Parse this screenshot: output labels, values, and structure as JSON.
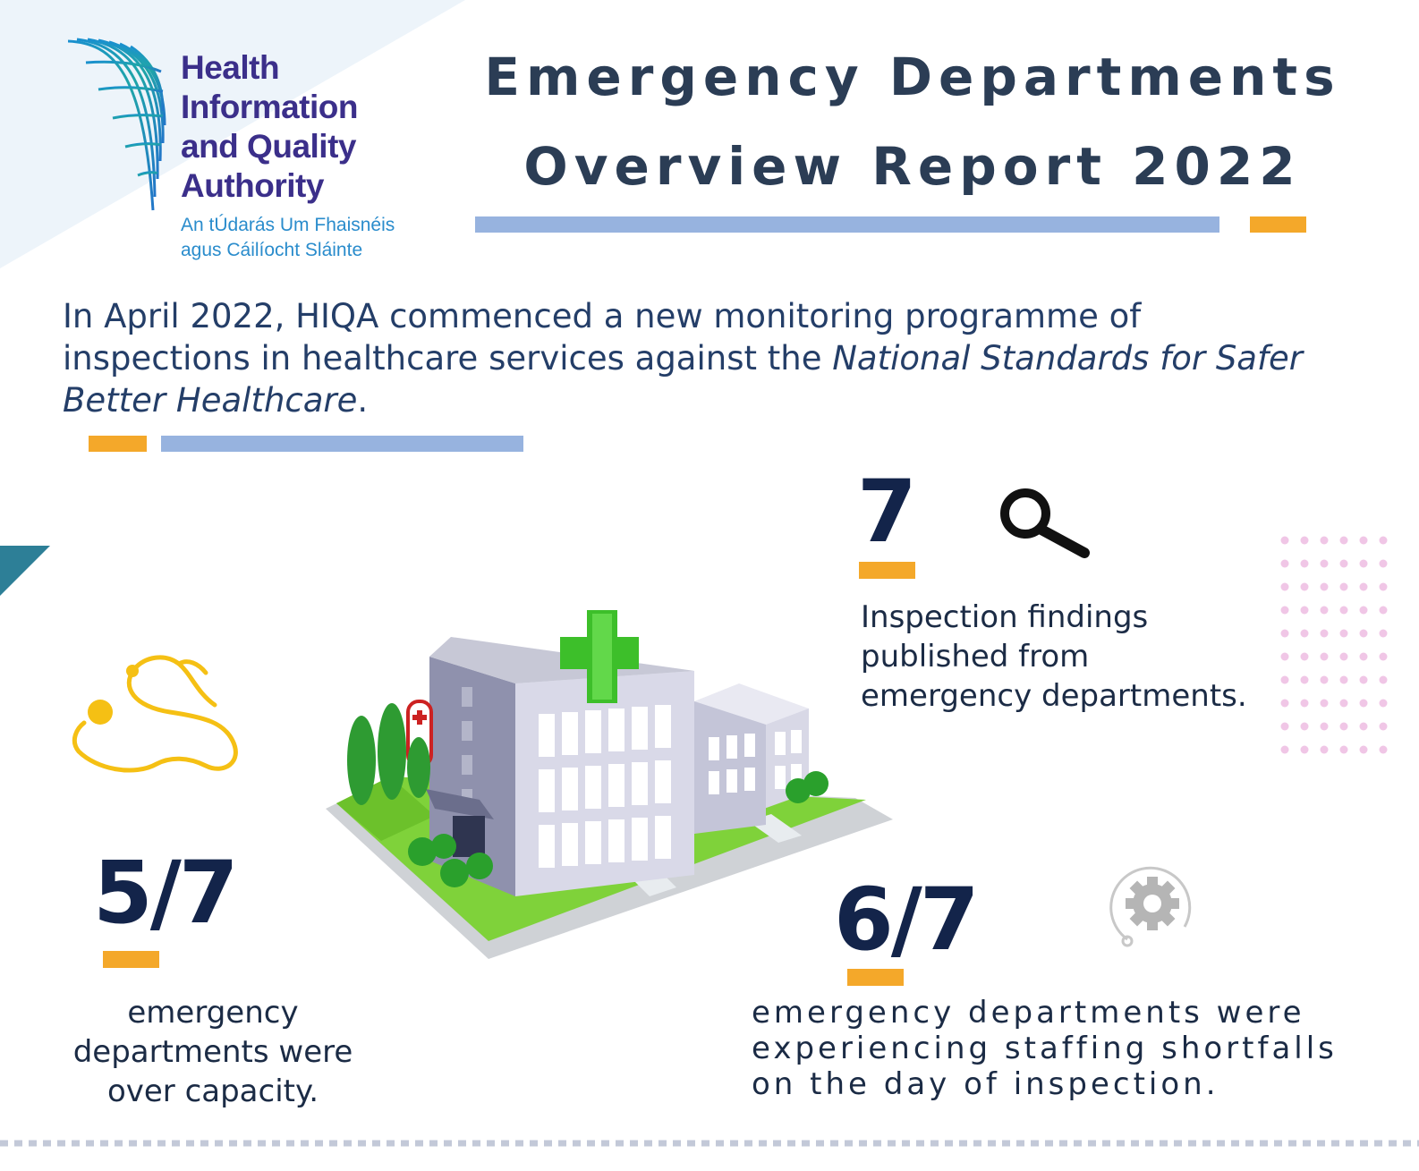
{
  "logo": {
    "lines": [
      "Health",
      "Information",
      "and Quality",
      "Authority"
    ],
    "irish_lines": [
      "An tÚdarás Um Fhaisnéis",
      "agus Cáilíocht Sláinte"
    ]
  },
  "title": {
    "line1": "Emergency Departments",
    "line2": "Overview Report 2022"
  },
  "intro": {
    "text_plain": "In April 2022, HIQA commenced a new monitoring programme of inspections in healthcare services against the ",
    "text_italic": "National Standards for Safer Better Healthcare",
    "text_end": "."
  },
  "stats": {
    "inspections": {
      "value": "7",
      "icon": "magnifying-glass-icon",
      "lines": [
        "Inspection findings",
        "published from",
        "emergency departments."
      ]
    },
    "over_capacity": {
      "value": "5/7",
      "icon": "stethoscope-icon",
      "lines": [
        "emergency",
        "departments were",
        "over capacity."
      ]
    },
    "staffing": {
      "value": "6/7",
      "icon": "gear-icon",
      "lines": [
        "emergency departments were",
        "experiencing staffing shortfalls",
        "on the day of inspection."
      ]
    }
  },
  "illustration": {
    "icon": "hospital-building-illustration"
  },
  "colors": {
    "navy": "#13244a",
    "title": "#2b3d55",
    "accent_orange": "#f4a82a",
    "accent_blue": "#97b3df",
    "logo_purple": "#3b2f8a",
    "logo_blue": "#2a8ccc"
  }
}
